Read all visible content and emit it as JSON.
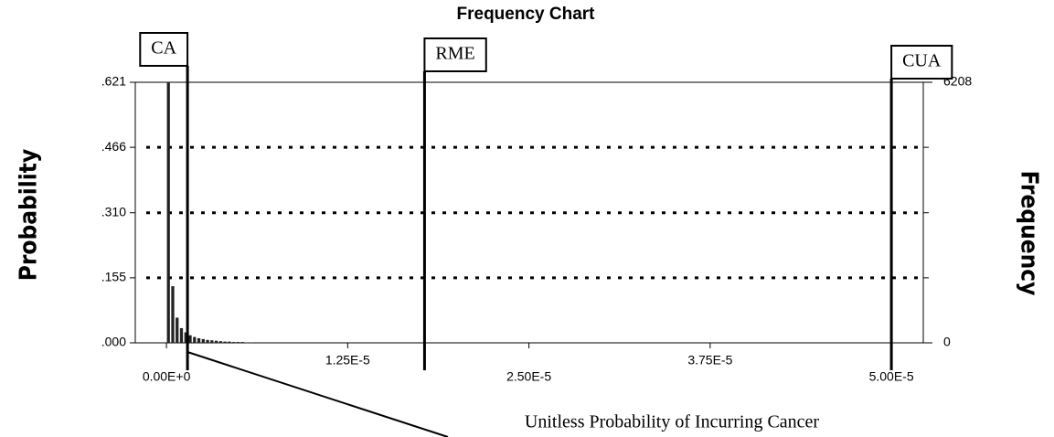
{
  "chart_data": {
    "type": "histogram",
    "title": "Frequency Chart",
    "x_label": "Unitless Probability of Incurring Cancer",
    "y_label": "Probability",
    "y2_label": "Frequency",
    "bins": [
      0,
      3e-07,
      6e-07,
      9e-07,
      1.2e-06,
      1.5e-06,
      1.8e-06,
      2.1e-06,
      2.4e-06,
      2.7e-06,
      3e-06,
      3.3e-06,
      3.6e-06,
      3.9e-06,
      4.2e-06,
      4.5e-06,
      4.8e-06,
      5.1e-06,
      5.4e-06,
      5.7e-06,
      6e-06
    ],
    "values": [
      0.621,
      0.135,
      0.06,
      0.035,
      0.025,
      0.018,
      0.014,
      0.011,
      0.009,
      0.007,
      0.006,
      0.005,
      0.004,
      0.003,
      0.003,
      0.002,
      0.002,
      0.002,
      0.001,
      0.001
    ],
    "color": "#222222",
    "xlim": [
      -2.15e-06,
      5.22e-05
    ],
    "xticks": [
      {
        "value": 0,
        "label": "0.00E+0"
      },
      {
        "value": 1.25e-05,
        "label": "1.25E-5"
      },
      {
        "value": 2.5e-05,
        "label": "2.50E-5"
      },
      {
        "value": 3.75e-05,
        "label": "3.75E-5"
      },
      {
        "value": 5e-05,
        "label": "5.00E-5"
      }
    ],
    "ylim": [
      0,
      0.621
    ],
    "yticks": [
      {
        "value": 0,
        "label": ".000"
      },
      {
        "value": 0.155,
        "label": ".155"
      },
      {
        "value": 0.31,
        "label": ".310"
      },
      {
        "value": 0.466,
        "label": ".466"
      },
      {
        "value": 0.621,
        "label": ".621"
      }
    ],
    "y2lim": [
      0,
      6208
    ],
    "y2ticks": [
      0,
      6208
    ],
    "grid": true,
    "markers": [
      {
        "label": "CA",
        "value": 1.45e-06
      },
      {
        "label": "RME",
        "value": 1.78e-05
      },
      {
        "label": "CUA",
        "value": 5e-05
      }
    ]
  }
}
